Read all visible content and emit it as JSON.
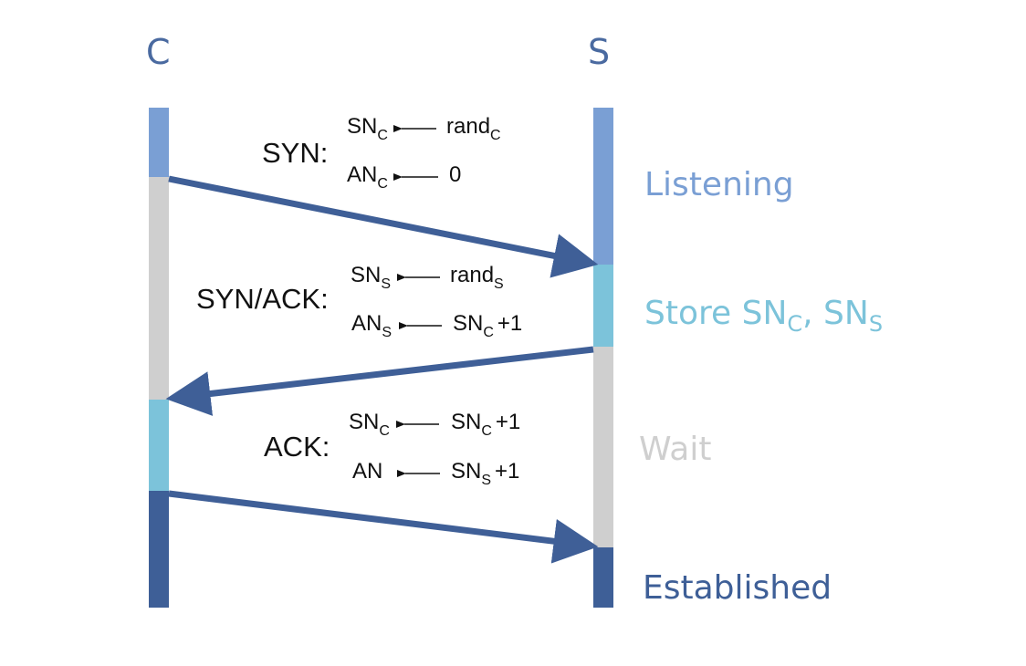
{
  "colors": {
    "listen": "#7a9fd4",
    "store": "#7cc3da",
    "wait": "#cfcfcf",
    "established": "#3e5f97",
    "arrow": "#3f5f97",
    "host_label": "#4a6aa0",
    "text": "#111111"
  },
  "hosts": {
    "client": "C",
    "server": "S"
  },
  "messages": {
    "syn": {
      "label": "SYN:",
      "line1": {
        "lhs": "SN",
        "lhs_sub": "C",
        "rhs": "rand",
        "rhs_sub": "C"
      },
      "line2": {
        "lhs": "AN",
        "lhs_sub": "C",
        "rhs": "0"
      }
    },
    "synack": {
      "label": "SYN/ACK:",
      "line1": {
        "lhs": "SN",
        "lhs_sub": "S",
        "rhs": "rand",
        "rhs_sub": "S"
      },
      "line2": {
        "lhs": "AN",
        "lhs_sub": "S",
        "rhs": "SN",
        "rhs_sub": "C",
        "rhs_tail": "+1"
      }
    },
    "ack": {
      "label": "ACK:",
      "line1": {
        "lhs": "SN",
        "lhs_sub": "C",
        "rhs": "SN",
        "rhs_sub": "C",
        "rhs_tail": "+1"
      },
      "line2": {
        "lhs": "AN",
        "rhs": "SN",
        "rhs_sub": "S",
        "rhs_tail": "+1"
      }
    }
  },
  "states": {
    "listening": "Listening",
    "store": {
      "text": "Store SN",
      "sub1": "C",
      "mid": ", SN",
      "sub2": "S"
    },
    "wait": "Wait",
    "established": "Established"
  }
}
